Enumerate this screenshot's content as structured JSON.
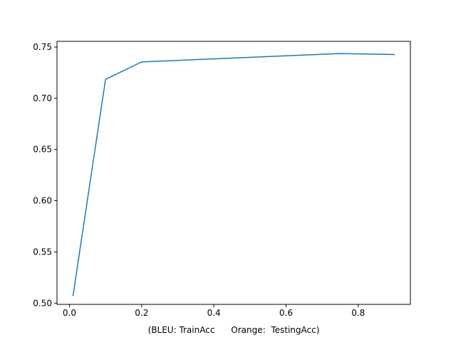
{
  "chart_data": {
    "type": "line",
    "title": "",
    "xlabel": "(BLEU: TrainAcc      Orange:  TestingAcc)",
    "ylabel": "",
    "xlim": [
      -0.0345,
      0.9445
    ],
    "ylim": [
      0.4988,
      0.7556
    ],
    "xticks": [
      0.0,
      0.2,
      0.4,
      0.6,
      0.8
    ],
    "xtick_labels": [
      "0.0",
      "0.2",
      "0.4",
      "0.6",
      "0.8"
    ],
    "yticks": [
      0.5,
      0.55,
      0.6,
      0.65,
      0.7,
      0.75
    ],
    "ytick_labels": [
      "0.50",
      "0.55",
      "0.60",
      "0.65",
      "0.70",
      "0.75"
    ],
    "grid": false,
    "series": [
      {
        "name": "TrainAcc",
        "color": "#1f77b4",
        "x": [
          0.01,
          0.1,
          0.2,
          0.75,
          0.9
        ],
        "y": [
          0.5075,
          0.7185,
          0.7355,
          0.7437,
          0.7427
        ]
      }
    ]
  }
}
